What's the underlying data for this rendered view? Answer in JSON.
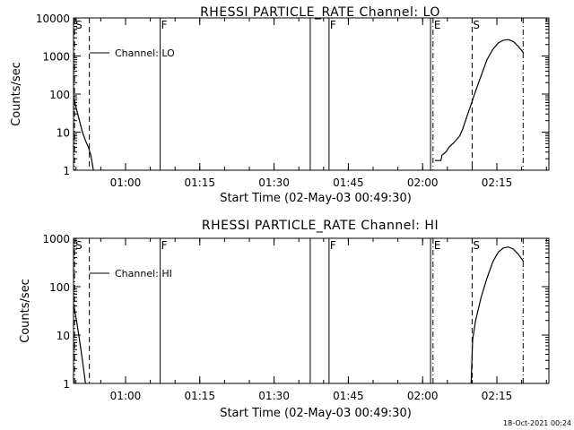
{
  "chart_data": [
    {
      "type": "line",
      "title": "RHESSI PARTICLE_RATE Channel: LO",
      "xlabel": "Start Time (02-May-03 00:49:30)",
      "ylabel": "Counts/sec",
      "yscale": "log",
      "ylim": [
        1,
        10000
      ],
      "xlim_minutes": [
        0,
        96
      ],
      "x_ticks": [
        {
          "t": 10.5,
          "label": "01:00"
        },
        {
          "t": 25.5,
          "label": "01:15"
        },
        {
          "t": 40.5,
          "label": "01:30"
        },
        {
          "t": 55.5,
          "label": "01:45"
        },
        {
          "t": 70.5,
          "label": "02:00"
        },
        {
          "t": 85.5,
          "label": "02:15"
        }
      ],
      "y_ticks": [
        {
          "v": 1,
          "label": "1"
        },
        {
          "v": 10,
          "label": "10"
        },
        {
          "v": 100,
          "label": "100"
        },
        {
          "v": 1000,
          "label": "1000"
        },
        {
          "v": 10000,
          "label": "10000"
        }
      ],
      "legend": "Channel: LO",
      "markers": [
        {
          "t": 0.2,
          "label": "S",
          "style": "dashdot"
        },
        {
          "t": 3.2,
          "label": "",
          "style": "dashed"
        },
        {
          "t": 17.5,
          "label": "F",
          "style": "solid"
        },
        {
          "t": 47.8,
          "label": "",
          "style": "solid"
        },
        {
          "t": 51.6,
          "label": "F",
          "style": "solid"
        },
        {
          "t": 72.1,
          "label": "",
          "style": "solid"
        },
        {
          "t": 72.6,
          "label": "E",
          "style": "dashdot"
        },
        {
          "t": 80.5,
          "label": "S",
          "style": "dashed"
        },
        {
          "t": 90.8,
          "label": "",
          "style": "dashdot"
        }
      ],
      "series": [
        {
          "name": "Channel: LO",
          "segments": [
            [
              [
                0.0,
                85
              ],
              [
                0.6,
                40
              ],
              [
                1.2,
                20
              ],
              [
                1.8,
                10
              ],
              [
                2.4,
                6
              ],
              [
                3.0,
                4
              ],
              [
                3.5,
                2.5
              ],
              [
                4.0,
                1
              ]
            ],
            [
              [
                73.0,
                1.8
              ],
              [
                74.2,
                1.8
              ],
              [
                74.4,
                2.5
              ],
              [
                75.2,
                3
              ],
              [
                75.8,
                4
              ],
              [
                76.6,
                5
              ],
              [
                77.2,
                6
              ],
              [
                78.0,
                8
              ],
              [
                78.6,
                12
              ],
              [
                79.4,
                25
              ],
              [
                80.2,
                50
              ],
              [
                81.2,
                120
              ],
              [
                82.3,
                300
              ],
              [
                83.5,
                800
              ],
              [
                84.7,
                1500
              ],
              [
                85.8,
                2200
              ],
              [
                86.8,
                2600
              ],
              [
                87.8,
                2700
              ],
              [
                88.8,
                2400
              ],
              [
                89.8,
                1800
              ],
              [
                90.9,
                1200
              ]
            ]
          ]
        }
      ]
    },
    {
      "type": "line",
      "title": "RHESSI PARTICLE_RATE Channel: HI",
      "xlabel": "Start Time (02-May-03 00:49:30)",
      "ylabel": "Counts/sec",
      "yscale": "log",
      "ylim": [
        1,
        1000
      ],
      "xlim_minutes": [
        0,
        96
      ],
      "x_ticks": [
        {
          "t": 10.5,
          "label": "01:00"
        },
        {
          "t": 25.5,
          "label": "01:15"
        },
        {
          "t": 40.5,
          "label": "01:30"
        },
        {
          "t": 55.5,
          "label": "01:45"
        },
        {
          "t": 70.5,
          "label": "02:00"
        },
        {
          "t": 85.5,
          "label": "02:15"
        }
      ],
      "y_ticks": [
        {
          "v": 1,
          "label": "1"
        },
        {
          "v": 10,
          "label": "10"
        },
        {
          "v": 100,
          "label": "100"
        },
        {
          "v": 1000,
          "label": "1000"
        }
      ],
      "legend": "Channel: HI",
      "markers": [
        {
          "t": 0.2,
          "label": "S",
          "style": "dashdot"
        },
        {
          "t": 3.2,
          "label": "",
          "style": "dashed"
        },
        {
          "t": 17.5,
          "label": "F",
          "style": "solid"
        },
        {
          "t": 47.8,
          "label": "",
          "style": "solid"
        },
        {
          "t": 51.6,
          "label": "F",
          "style": "solid"
        },
        {
          "t": 72.1,
          "label": "",
          "style": "solid"
        },
        {
          "t": 72.6,
          "label": "E",
          "style": "dashdot"
        },
        {
          "t": 80.5,
          "label": "S",
          "style": "dashed"
        },
        {
          "t": 90.8,
          "label": "",
          "style": "dashdot"
        }
      ],
      "series": [
        {
          "name": "Channel: HI",
          "segments": [
            [
              [
                0.0,
                45
              ],
              [
                0.6,
                20
              ],
              [
                1.2,
                8
              ],
              [
                1.8,
                3
              ],
              [
                2.4,
                1
              ]
            ],
            [
              [
                80.3,
                1
              ],
              [
                80.6,
                8
              ],
              [
                81.2,
                20
              ],
              [
                82.3,
                60
              ],
              [
                83.5,
                150
              ],
              [
                84.7,
                330
              ],
              [
                85.8,
                520
              ],
              [
                86.8,
                630
              ],
              [
                87.8,
                660
              ],
              [
                88.8,
                600
              ],
              [
                89.8,
                470
              ],
              [
                90.9,
                330
              ]
            ]
          ]
        }
      ]
    }
  ],
  "footer": {
    "timestamp": "18-Oct-2021 00:24"
  }
}
